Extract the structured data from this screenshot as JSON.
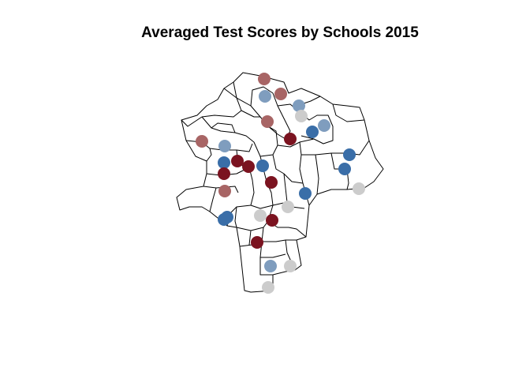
{
  "title": "Averaged Test Scores by Schools 2015",
  "palette": {
    "dark_red": "#7B1320",
    "light_red": "#A86565",
    "grey": "#CCCCCC",
    "light_blue": "#7F9DBE",
    "dark_blue": "#3A6EA8"
  },
  "schools": [
    {
      "score_group": "light_red"
    },
    {
      "score_group": "light_red"
    },
    {
      "score_group": "light_blue"
    },
    {
      "score_group": "light_blue"
    },
    {
      "score_group": "grey"
    },
    {
      "score_group": "light_red"
    },
    {
      "score_group": "dark_blue"
    },
    {
      "score_group": "light_blue"
    },
    {
      "score_group": "dark_red"
    },
    {
      "score_group": "light_red"
    },
    {
      "score_group": "light_blue"
    },
    {
      "score_group": "dark_red"
    },
    {
      "score_group": "dark_red"
    },
    {
      "score_group": "dark_blue"
    },
    {
      "score_group": "dark_blue"
    },
    {
      "score_group": "dark_red"
    },
    {
      "score_group": "dark_blue"
    },
    {
      "score_group": "dark_blue"
    },
    {
      "score_group": "dark_red"
    },
    {
      "score_group": "light_red"
    },
    {
      "score_group": "dark_blue"
    },
    {
      "score_group": "grey"
    },
    {
      "score_group": "grey"
    },
    {
      "score_group": "dark_blue"
    },
    {
      "score_group": "dark_blue"
    },
    {
      "score_group": "grey"
    },
    {
      "score_group": "dark_red"
    },
    {
      "score_group": "dark_red"
    },
    {
      "score_group": "light_blue"
    },
    {
      "score_group": "grey"
    },
    {
      "score_group": "grey"
    }
  ]
}
